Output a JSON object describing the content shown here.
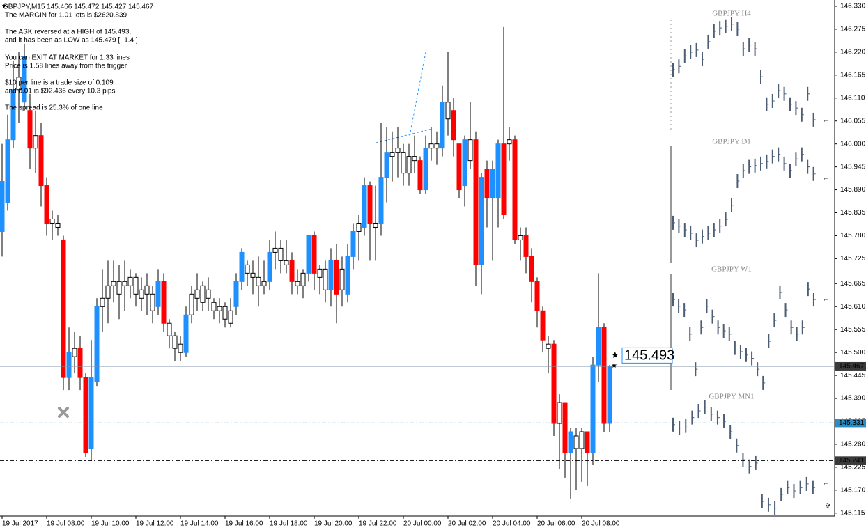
{
  "chart_data": {
    "type": "candlestick",
    "title": "GBPJPY,M15  145.466 145.472 145.427 145.467",
    "annotations": [
      "The MARGIN for 1.01 lots is $2620.839",
      "The ASK reversed at a HIGH of 145.493,",
      "and it has been as LOW as 145.479 [ -1.4 ]",
      "You can EXIT AT MARKET for 1.33 lines",
      "Price is 1.58 lines away from the trigger",
      "$10 per line is a trade size of 0.109",
      "and 0.01 is $92.436 every 10.3 pips",
      "The spread is 25.3% of one line"
    ],
    "up_color": "#1e90ff",
    "down_color": "#ff0000",
    "neutral_color": "#ffffff",
    "ylim": [
      145.108,
      146.345
    ],
    "yticks": [
      {
        "value": 146.33,
        "label": "146.330"
      },
      {
        "value": 146.275,
        "label": "146.275"
      },
      {
        "value": 146.22,
        "label": "146.220"
      },
      {
        "value": 146.165,
        "label": "146.165"
      },
      {
        "value": 146.11,
        "label": "146.110"
      },
      {
        "value": 146.055,
        "label": "146.055"
      },
      {
        "value": 146,
        "label": "146.000"
      },
      {
        "value": 145.945,
        "label": "145.945"
      },
      {
        "value": 145.89,
        "label": "145.890"
      },
      {
        "value": 145.835,
        "label": "145.835"
      },
      {
        "value": 145.78,
        "label": "145.780"
      },
      {
        "value": 145.725,
        "label": "145.725"
      },
      {
        "value": 145.665,
        "label": "145.665"
      },
      {
        "value": 145.61,
        "label": "145.610"
      },
      {
        "value": 145.555,
        "label": "145.555"
      },
      {
        "value": 145.5,
        "label": "145.500"
      },
      {
        "value": 145.445,
        "label": "145.445"
      },
      {
        "value": 145.39,
        "label": "145.390"
      },
      {
        "value": 145.335,
        "label": "145.335"
      },
      {
        "value": 145.28,
        "label": "145.280"
      },
      {
        "value": 145.225,
        "label": "145.225"
      },
      {
        "value": 145.17,
        "label": "145.170"
      },
      {
        "value": 145.115,
        "label": "145.115"
      }
    ],
    "categories": [
      "19 Jul 2017",
      null,
      null,
      null,
      null,
      null,
      null,
      null,
      "19 Jul 08:00",
      null,
      null,
      null,
      null,
      null,
      null,
      null,
      "19 Jul 10:00",
      null,
      null,
      null,
      null,
      null,
      null,
      null,
      "19 Jul 12:00",
      null,
      null,
      null,
      null,
      null,
      null,
      null,
      "19 Jul 14:00",
      null,
      null,
      null,
      null,
      null,
      null,
      null,
      "19 Jul 16:00",
      null,
      null,
      null,
      null,
      null,
      null,
      null,
      "19 Jul 18:00",
      null,
      null,
      null,
      null,
      null,
      null,
      null,
      "19 Jul 20:00",
      null,
      null,
      null,
      null,
      null,
      null,
      null,
      "19 Jul 22:00",
      null,
      null,
      null,
      null,
      null,
      null,
      null,
      "20 Jul 00:00",
      null,
      null,
      null,
      null,
      null,
      null,
      null,
      "20 Jul 02:00",
      null,
      null,
      null,
      null,
      null,
      null,
      null,
      "20 Jul 04:00",
      null,
      null,
      null,
      null,
      null,
      null,
      null,
      "20 Jul 06:00",
      null,
      null,
      null,
      null,
      null,
      null,
      null,
      "20 Jul 08:00",
      null,
      null,
      null,
      null,
      null
    ],
    "open": [
      145.79,
      145.86,
      146.01,
      146.13,
      146.1,
      146.08,
      145.99,
      146.02,
      145.9,
      145.81,
      145.8,
      145.77,
      145.44,
      145.49,
      145.51,
      145.44,
      145.27,
      145.43,
      145.61,
      145.63,
      145.66,
      145.64,
      145.66,
      145.66,
      145.68,
      145.63,
      145.64,
      145.64,
      145.61,
      145.67,
      145.57,
      145.54,
      145.5,
      145.5,
      145.59,
      145.63,
      145.62,
      145.65,
      145.62,
      145.6,
      145.61,
      145.57,
      145.61,
      145.67,
      145.71,
      145.69,
      145.68,
      145.66,
      145.67,
      145.74,
      145.75,
      145.71,
      145.72,
      145.66,
      145.66,
      145.69,
      145.78,
      145.68,
      145.7,
      145.65,
      145.72,
      145.65,
      145.64,
      145.73,
      145.79,
      145.8,
      145.9,
      145.8,
      145.81,
      145.92,
      145.97,
      145.98,
      145.98,
      145.93,
      145.97,
      145.96,
      145.89,
      145.99,
      146.0,
      145.99,
      146.1,
      146.08,
      146.0,
      145.9,
      145.96,
      146.01,
      145.71,
      145.94,
      145.87,
      145.87,
      146.0,
      146.0,
      146.01,
      145.77,
      145.78,
      145.73,
      145.67,
      145.6,
      145.51,
      145.52,
      145.33,
      145.38,
      145.26,
      145.3,
      145.27,
      145.31,
      145.26,
      145.47,
      145.56,
      145.33
    ],
    "high": [
      146.0,
      146.07,
      146.2,
      146.22,
      146.24,
      146.12,
      146.08,
      146.05,
      145.92,
      145.84,
      145.83,
      145.78,
      145.56,
      145.55,
      145.54,
      145.45,
      145.53,
      145.63,
      145.7,
      145.72,
      145.72,
      145.71,
      145.72,
      145.7,
      145.69,
      145.68,
      145.69,
      145.66,
      145.7,
      145.69,
      145.58,
      145.55,
      145.54,
      145.61,
      145.66,
      145.69,
      145.67,
      145.68,
      145.63,
      145.63,
      145.62,
      145.63,
      145.69,
      145.75,
      145.72,
      145.72,
      145.73,
      145.72,
      145.77,
      145.79,
      145.77,
      145.77,
      145.74,
      145.7,
      145.7,
      145.78,
      145.79,
      145.71,
      145.72,
      145.75,
      145.76,
      145.73,
      145.76,
      145.81,
      145.83,
      145.92,
      145.91,
      145.9,
      146.05,
      146.04,
      146.03,
      146.04,
      146.0,
      146.0,
      146.02,
      145.97,
      146.02,
      146.04,
      146.03,
      146.14,
      146.22,
      146.11,
      146.0,
      146.02,
      146.1,
      146.03,
      145.93,
      145.96,
      145.96,
      146.01,
      146.28,
      146.04,
      146.02,
      145.8,
      145.8,
      145.75,
      145.68,
      145.61,
      145.54,
      145.53,
      145.4,
      145.38,
      145.32,
      145.32,
      145.32,
      145.31,
      145.49,
      145.69,
      145.57,
      145.47
    ],
    "low": [
      145.73,
      145.84,
      145.99,
      146.05,
      146.08,
      145.94,
      145.93,
      145.85,
      145.78,
      145.77,
      145.78,
      145.41,
      145.41,
      145.45,
      145.41,
      145.25,
      145.24,
      145.42,
      145.55,
      145.57,
      145.62,
      145.58,
      145.6,
      145.63,
      145.61,
      145.6,
      145.59,
      145.57,
      145.59,
      145.55,
      145.51,
      145.48,
      145.48,
      145.49,
      145.57,
      145.6,
      145.6,
      145.6,
      145.58,
      145.57,
      145.56,
      145.56,
      145.59,
      145.65,
      145.66,
      145.64,
      145.61,
      145.64,
      145.65,
      145.7,
      145.69,
      145.69,
      145.64,
      145.64,
      145.63,
      145.67,
      145.65,
      145.64,
      145.62,
      145.61,
      145.57,
      145.61,
      145.62,
      145.7,
      145.72,
      145.78,
      145.72,
      145.72,
      145.78,
      145.86,
      145.91,
      145.92,
      145.9,
      145.9,
      145.93,
      145.88,
      145.88,
      145.96,
      145.95,
      145.97,
      146.02,
      145.97,
      145.87,
      145.85,
      145.94,
      145.66,
      145.64,
      145.8,
      145.72,
      145.8,
      145.82,
      145.96,
      145.76,
      145.72,
      145.69,
      145.62,
      145.56,
      145.5,
      145.45,
      145.3,
      145.22,
      145.2,
      145.15,
      145.17,
      145.19,
      145.18,
      145.23,
      145.43,
      145.31,
      145.31
    ],
    "close": [
      145.91,
      146.01,
      146.13,
      146.16,
      146.21,
      145.99,
      146.02,
      145.9,
      145.81,
      145.82,
      145.81,
      145.44,
      145.5,
      145.51,
      145.44,
      145.26,
      145.44,
      145.61,
      145.63,
      145.66,
      145.67,
      145.67,
      145.67,
      145.68,
      145.64,
      145.65,
      145.66,
      145.6,
      145.67,
      145.57,
      145.54,
      145.51,
      145.52,
      145.59,
      145.64,
      145.65,
      145.66,
      145.63,
      145.6,
      145.61,
      145.58,
      145.6,
      145.67,
      145.74,
      145.69,
      145.68,
      145.66,
      145.67,
      145.74,
      145.75,
      145.72,
      145.72,
      145.67,
      145.67,
      145.69,
      145.78,
      145.69,
      145.7,
      145.65,
      145.72,
      145.64,
      145.7,
      145.73,
      145.79,
      145.81,
      145.9,
      145.81,
      145.81,
      145.92,
      145.98,
      145.98,
      145.99,
      145.93,
      145.97,
      145.96,
      145.89,
      145.99,
      146.0,
      145.99,
      146.1,
      146.06,
      146.01,
      145.89,
      146.01,
      146.01,
      145.71,
      145.92,
      145.87,
      145.94,
      146.0,
      145.83,
      146.01,
      145.77,
      145.78,
      145.73,
      145.67,
      145.6,
      145.53,
      145.52,
      145.33,
      145.38,
      145.26,
      145.31,
      145.27,
      145.31,
      145.26,
      145.47,
      145.56,
      145.33,
      145.467
    ],
    "lines": [
      {
        "value": 145.467,
        "label": "145.467",
        "color": "#7f94a8",
        "box": "#3a3a3a",
        "dash": "none"
      },
      {
        "value": 145.331,
        "label": "145.331",
        "color": "#2a8cc0",
        "box": "#2a8cc0",
        "dash": "6 3 2 3"
      },
      {
        "value": 145.241,
        "label": "145.241",
        "color": "#000000",
        "box": "#3a3a3a",
        "dash": "6 3 2 3"
      }
    ],
    "price_label": {
      "value": 145.493,
      "label": "145.493",
      "color": "#1e90ff"
    },
    "panels": [
      {
        "title": "GBPJPY H4",
        "color": "#4d5e74",
        "values": [
          146.178,
          146.186,
          146.211,
          146.22,
          146.225,
          146.203,
          146.245,
          146.27,
          146.278,
          146.282,
          146.287,
          146.275,
          146.228,
          146.237,
          146.228,
          146.161,
          146.095,
          146.103,
          146.128,
          146.12,
          146.095,
          146.086,
          146.07,
          146.12,
          146.058
        ]
      },
      {
        "title": "GBPJPY D1",
        "color": "#4d5e74",
        "values": [
          145.811,
          145.803,
          145.794,
          145.786,
          145.769,
          145.778,
          145.786,
          145.794,
          145.803,
          145.819,
          145.853,
          145.911,
          145.936,
          145.945,
          145.948,
          145.953,
          145.958,
          145.97,
          145.975,
          145.953,
          145.936,
          145.964,
          145.975,
          145.945,
          145.928
        ]
      },
      {
        "title": "GBPJPY W1",
        "color": "#4d5e74",
        "values": [
          145.627,
          145.611,
          145.602,
          145.544,
          145.46,
          145.56,
          145.611,
          145.586,
          145.56,
          145.552,
          145.544,
          145.511,
          145.502,
          145.494,
          145.486,
          145.46,
          145.427,
          145.527,
          145.577,
          145.644,
          145.602,
          145.56,
          145.544,
          145.56,
          145.652,
          145.627
        ]
      },
      {
        "title": "GBPJPY MN1",
        "color": "#4d5e74",
        "values": [
          145.327,
          145.319,
          145.324,
          145.344,
          145.36,
          145.369,
          145.352,
          145.344,
          145.335,
          145.31,
          145.277,
          145.243,
          145.227,
          145.235,
          145.143,
          145.135,
          145.127,
          145.16,
          145.177,
          145.168,
          145.177,
          145.185,
          145.177
        ]
      }
    ]
  }
}
